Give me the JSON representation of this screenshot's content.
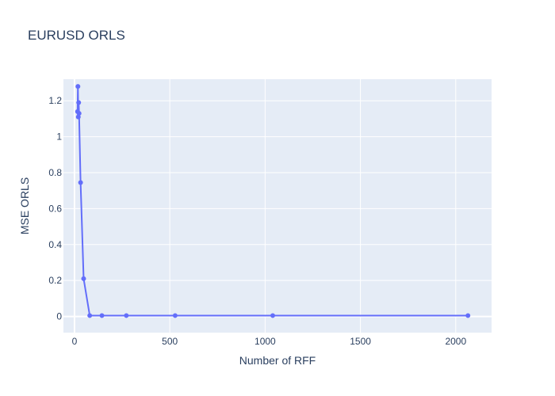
{
  "chart_data": {
    "type": "line",
    "title": "EURUSD ORLS",
    "xlabel": "Number of RFF",
    "ylabel": "MSE ORLS",
    "xlim": [
      -58,
      2188
    ],
    "ylim": [
      -0.09,
      1.32
    ],
    "xticks": [
      0,
      500,
      1000,
      1500,
      2000
    ],
    "xtick_labels": [
      "0",
      "500",
      "1000",
      "1500",
      "2000"
    ],
    "yticks": [
      0,
      0.2,
      0.4,
      0.6,
      0.8,
      1,
      1.2
    ],
    "ytick_labels": [
      "0",
      "0.2",
      "0.4",
      "0.6",
      "0.8",
      "1",
      "1.2"
    ],
    "grid": true,
    "series": [
      {
        "mode": "lines+markers",
        "color": "#636efa",
        "x": [
          16,
          18,
          20,
          22,
          24,
          32,
          48,
          80,
          144,
          272,
          528,
          1040,
          2064
        ],
        "y": [
          1.14,
          1.28,
          1.11,
          1.19,
          1.13,
          0.745,
          0.21,
          0.005,
          0.005,
          0.005,
          0.005,
          0.005,
          0.005
        ]
      }
    ]
  },
  "colors": {
    "plot_background": "#e5ecf6",
    "grid": "#ffffff",
    "text": "#2a3f5f",
    "series": "#636efa"
  }
}
